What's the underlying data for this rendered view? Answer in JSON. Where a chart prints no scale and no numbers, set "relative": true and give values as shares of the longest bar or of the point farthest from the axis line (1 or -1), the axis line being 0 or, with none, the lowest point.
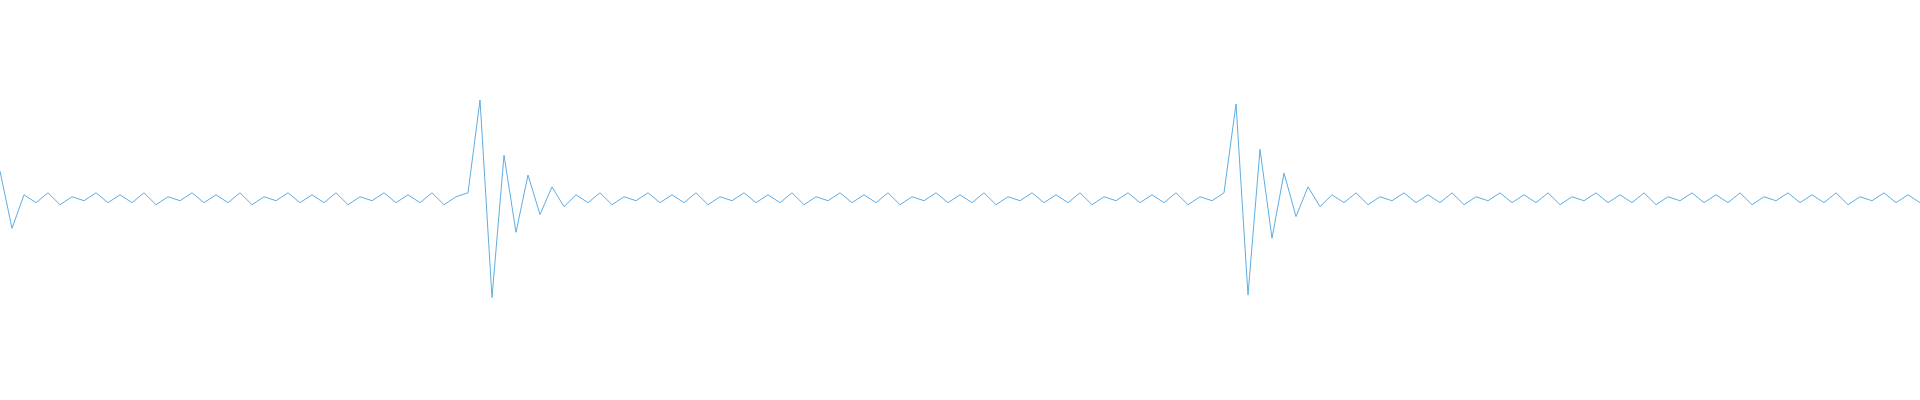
{
  "chart_data": {
    "type": "line",
    "relative": true,
    "categories": [
      null,
      null,
      null,
      null,
      null,
      null,
      null,
      null,
      null,
      null,
      null,
      null,
      null,
      null,
      null,
      null,
      null,
      null,
      null,
      null,
      null,
      null,
      null,
      null,
      null,
      null,
      null,
      null,
      null,
      null,
      null,
      null,
      null,
      null,
      null,
      null,
      null,
      null,
      null,
      null,
      null,
      null,
      null,
      null,
      null,
      null,
      null,
      null,
      null,
      null,
      null,
      null,
      null,
      null,
      null,
      null,
      null,
      null,
      null,
      null,
      null,
      null,
      null,
      null,
      null,
      null,
      null,
      null,
      null,
      null,
      null,
      null,
      null,
      null,
      null,
      null,
      null,
      null,
      null,
      null,
      null,
      null,
      null,
      null,
      null,
      null,
      null,
      null,
      null,
      null,
      null,
      null,
      null,
      null,
      null,
      null,
      null,
      null,
      null,
      null,
      null,
      null,
      null,
      null,
      null,
      null,
      null,
      null,
      null,
      null,
      null,
      null,
      null,
      null,
      null,
      null,
      null,
      null,
      null,
      null,
      null,
      null,
      null,
      null,
      null,
      null,
      null,
      null,
      null,
      null,
      null,
      null,
      null,
      null,
      null,
      null,
      null,
      null,
      null,
      null,
      null,
      null,
      null,
      null,
      null,
      null,
      null,
      null,
      null,
      null,
      null,
      null,
      null,
      null,
      null,
      null,
      null,
      null,
      null,
      null,
      null
    ],
    "series": [
      {
        "color": "#5dade2",
        "values": [
          0.64,
          0.35,
          0.52,
          0.48,
          0.53,
          0.47,
          0.51,
          0.49,
          0.53,
          0.48,
          0.52,
          0.48,
          0.53,
          0.47,
          0.51,
          0.49,
          0.53,
          0.48,
          0.52,
          0.48,
          0.53,
          0.47,
          0.51,
          0.49,
          0.53,
          0.48,
          0.52,
          0.48,
          0.53,
          0.47,
          0.51,
          0.49,
          0.53,
          0.48,
          0.52,
          0.48,
          0.53,
          0.47,
          0.51,
          0.53,
          1,
          0,
          0.72,
          0.33,
          0.62,
          0.42,
          0.56,
          0.46,
          0.52,
          0.48,
          0.53,
          0.47,
          0.51,
          0.49,
          0.53,
          0.48,
          0.52,
          0.48,
          0.53,
          0.47,
          0.51,
          0.49,
          0.53,
          0.48,
          0.52,
          0.48,
          0.53,
          0.47,
          0.51,
          0.49,
          0.53,
          0.48,
          0.52,
          0.48,
          0.53,
          0.47,
          0.51,
          0.49,
          0.53,
          0.48,
          0.52,
          0.48,
          0.53,
          0.47,
          0.51,
          0.49,
          0.53,
          0.48,
          0.52,
          0.48,
          0.53,
          0.47,
          0.51,
          0.49,
          0.53,
          0.48,
          0.52,
          0.48,
          0.53,
          0.47,
          0.51,
          0.49,
          0.53,
          0.98,
          0.013,
          0.75,
          0.3,
          0.63,
          0.41,
          0.56,
          0.46,
          0.52,
          0.48,
          0.53,
          0.47,
          0.51,
          0.49,
          0.53,
          0.48,
          0.52,
          0.48,
          0.53,
          0.47,
          0.51,
          0.49,
          0.53,
          0.48,
          0.52,
          0.48,
          0.53,
          0.47,
          0.51,
          0.49,
          0.53,
          0.48,
          0.52,
          0.48,
          0.53,
          0.47,
          0.51,
          0.49,
          0.53,
          0.48,
          0.52,
          0.48,
          0.53,
          0.47,
          0.51,
          0.49,
          0.53,
          0.48,
          0.52,
          0.48,
          0.53,
          0.47,
          0.51,
          0.49,
          0.53,
          0.48,
          0.52,
          0.48
        ]
      }
    ]
  }
}
